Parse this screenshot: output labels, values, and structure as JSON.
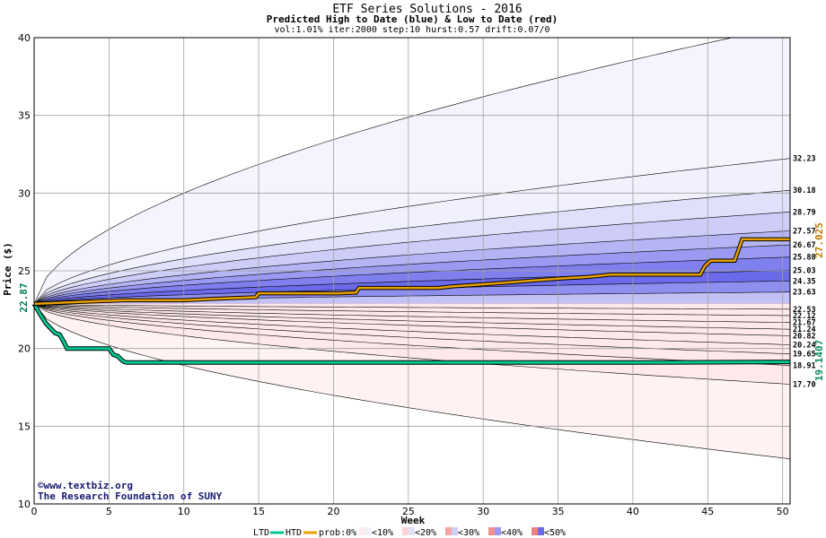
{
  "chart_data": {
    "type": "area",
    "title": "ETF Series Solutions - 2016",
    "subtitle": "Predicted High to Date (blue) &  Low to Date (red)",
    "params": "vol:1.01% iter:2000 step:10 hurst:0.57 drift:0.07/0",
    "xlabel": "Week",
    "ylabel": "Price ($)",
    "xlim": [
      0,
      50.5
    ],
    "ylim": [
      10,
      40
    ],
    "xticks": [
      0,
      5,
      10,
      15,
      20,
      25,
      30,
      35,
      40,
      45,
      50
    ],
    "yticks": [
      10,
      15,
      20,
      25,
      30,
      35,
      40
    ],
    "grid": true,
    "start_price": 22.87,
    "start_price_label": "22.87",
    "current_low_label": "19.1407",
    "current_high_label": "27.025",
    "high_percentile_end_labels": [
      "32.23",
      "30.18",
      "28.79",
      "27.57",
      "26.67",
      "25.88",
      "25.03",
      "24.35",
      "23.63"
    ],
    "high_percentile_end_values": [
      32.23,
      30.18,
      28.79,
      27.57,
      26.67,
      25.88,
      25.03,
      24.35,
      23.63
    ],
    "low_percentile_end_labels": [
      "22.53",
      "22.12",
      "21.67",
      "21.24",
      "20.82",
      "20.24",
      "19.65",
      "18.91",
      "17.70"
    ],
    "low_percentile_end_values": [
      22.53,
      22.12,
      21.67,
      21.24,
      20.82,
      20.24,
      19.65,
      18.91,
      17.7
    ],
    "high_outer_end_value": 40.8,
    "low_outer_end_value": 12.9,
    "high_band_colors": [
      "#f1f1fd",
      "#e0e0fb",
      "#cdcdf8",
      "#b5b5f5",
      "#9a9af2",
      "#7f7fee",
      "#6a6aea",
      "#8f8fef",
      "#c2c2f7"
    ],
    "low_band_colors": [
      "#fdeaea",
      "#fbd4d4",
      "#f8bcbc",
      "#f5a5a5",
      "#f29090",
      "#ee8080",
      "#f3a0a0",
      "#f8c4c4",
      "#fde9e9"
    ],
    "outer_high_color": "#f4f4fe",
    "outer_low_color": "#fef2f2",
    "htd_color": "#e8a100",
    "ltd_color": "#00c890",
    "htd_series": {
      "x": [
        0,
        3,
        6,
        10,
        12,
        14.8,
        15,
        20.5,
        21.5,
        21.7,
        27,
        28,
        29.5,
        31,
        33,
        35,
        37,
        38.5,
        44.5,
        44.8,
        45.2,
        46.8,
        47.3,
        50.5
      ],
      "y": [
        22.87,
        23.0,
        23.1,
        23.1,
        23.2,
        23.3,
        23.55,
        23.55,
        23.6,
        23.9,
        23.9,
        24.0,
        24.1,
        24.2,
        24.35,
        24.5,
        24.6,
        24.75,
        24.75,
        25.3,
        25.65,
        25.65,
        27.025,
        27.025
      ]
    },
    "ltd_series": {
      "x": [
        0,
        0.4,
        0.8,
        1.1,
        1.4,
        1.7,
        2.0,
        2.2,
        5,
        5.3,
        5.6,
        5.8,
        6,
        6.2,
        10,
        20,
        30,
        40,
        50.5
      ],
      "y": [
        22.87,
        22.2,
        21.6,
        21.3,
        21.0,
        20.9,
        20.4,
        20.0,
        20.0,
        19.6,
        19.5,
        19.3,
        19.15,
        19.1,
        19.1,
        19.1,
        19.1,
        19.1,
        19.14
      ]
    },
    "credits": [
      "©www.textbiz.org",
      "The Research Foundation of SUNY"
    ],
    "legend": {
      "ltd": "LTD",
      "htd": "HTD",
      "prob": "prob:0%",
      "items": [
        "<10%",
        "<20%",
        "<30%",
        "<40%",
        "<50%"
      ],
      "item_colors": [
        [
          "#fdeaea",
          "#f1f1fd"
        ],
        [
          "#fbd4d4",
          "#e0e0fb"
        ],
        [
          "#f5a5a5",
          "#cdcdf8"
        ],
        [
          "#f29090",
          "#9a9af2"
        ],
        [
          "#ee8080",
          "#6a6aea"
        ]
      ]
    }
  }
}
